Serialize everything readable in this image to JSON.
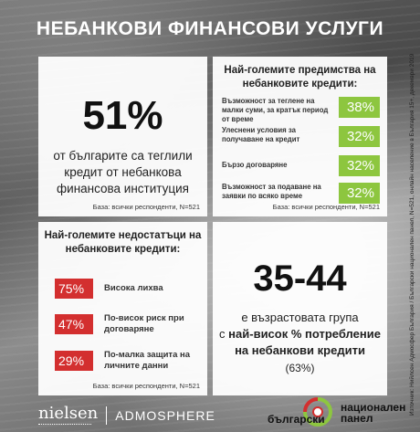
{
  "title": "НЕБАНКОВИ ФИНАНСОВИ УСЛУГИ",
  "stat_card": {
    "value": "51%",
    "description": "от българите са теглили кредит от небанкова финансова институция",
    "base": "База: всички респонденти, N=521"
  },
  "advantages": {
    "heading": "Най-големите предимства на небанковите кредити:",
    "items": [
      {
        "label": "Възможност за теглене на малки суми, за кратък период от време",
        "value": "38%"
      },
      {
        "label": "Улеснени условия за получаване на кредит",
        "value": "32%"
      },
      {
        "label": "Бързо договаряне",
        "value": "32%"
      },
      {
        "label": "Възможност за подаване на заявки по всяко време",
        "value": "32%"
      }
    ],
    "base": "База: всички респонденти, N=521",
    "accent_color": "#8dc63f"
  },
  "disadvantages": {
    "heading": "Най-големите недостатъци на небанковите кредити:",
    "items": [
      {
        "label": "Висока лихва",
        "value": "75%"
      },
      {
        "label": "По-висок риск при договаряне",
        "value": "47%"
      },
      {
        "label": "По-малка защита на личните данни",
        "value": "29%"
      }
    ],
    "base": "База: всички респонденти, N=521",
    "accent_color": "#d32f2f"
  },
  "age_card": {
    "value": "35-44",
    "line1": "е възрастовата група",
    "line2_prefix": "с ",
    "line2_bold": "най-висок % потребление",
    "line3": "на небанкови кредити",
    "line4": "(63%)"
  },
  "source": "Източник: Нийлсен Адмосфер България / Български национален панел, N=521, онлайн население в България 15+, декември 2019",
  "footer": {
    "nielsen": "nielsen",
    "admosphere": "ADMOSPHERE",
    "panel_word1": "български",
    "panel_word2": "национален",
    "panel_word3": "панел"
  }
}
